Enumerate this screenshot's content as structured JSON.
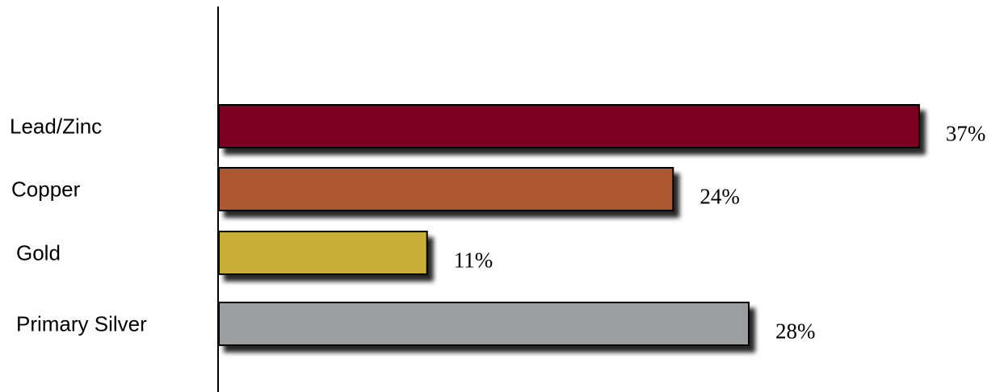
{
  "chart_data": {
    "type": "bar",
    "orientation": "horizontal",
    "categories": [
      "Lead/Zinc",
      "Copper",
      "Gold",
      "Primary Silver"
    ],
    "values": [
      37,
      24,
      11,
      28
    ],
    "value_labels": [
      "37%",
      "24%",
      "11%",
      "28%"
    ],
    "colors": [
      "#7d0022",
      "#ad5932",
      "#c8ad38",
      "#9c9da1"
    ],
    "xlim": [
      0,
      40
    ],
    "title": "",
    "xlabel": "",
    "ylabel": "",
    "grid": false,
    "legend": "none"
  }
}
